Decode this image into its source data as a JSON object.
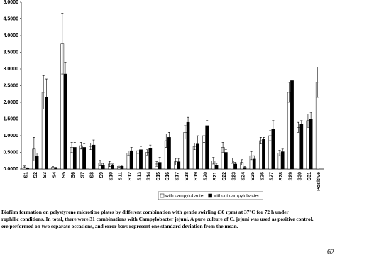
{
  "chart_data": {
    "type": "bar",
    "categories": [
      "S1",
      "S2",
      "S3",
      "S4",
      "S5",
      "S6",
      "S7",
      "S8",
      "S9",
      "S10",
      "S11",
      "S12",
      "S13",
      "S14",
      "S15",
      "S16",
      "S17",
      "S18",
      "S19",
      "S20",
      "S21",
      "S22",
      "S23",
      "S24",
      "S25",
      "S26",
      "S27",
      "S28",
      "S29",
      "S30",
      "S31",
      "Positive"
    ],
    "series": [
      {
        "name": "with campylobacter",
        "color": "#ffffff",
        "values": [
          0.06,
          0.6,
          2.3,
          0.05,
          3.75,
          0.65,
          0.7,
          0.68,
          0.18,
          0.15,
          0.08,
          0.48,
          0.55,
          0.5,
          0.15,
          0.85,
          0.22,
          1.1,
          0.68,
          1.0,
          0.25,
          0.65,
          0.25,
          0.2,
          0.4,
          0.85,
          1.0,
          0.48,
          2.3,
          1.25,
          1.45,
          2.6
        ],
        "errors": [
          0.03,
          0.35,
          0.5,
          0.02,
          0.9,
          0.15,
          0.1,
          0.1,
          0.08,
          0.08,
          0.03,
          0.06,
          0.08,
          0.08,
          0.07,
          0.2,
          0.1,
          0.2,
          0.1,
          0.2,
          0.1,
          0.15,
          0.08,
          0.08,
          0.12,
          0.1,
          0.15,
          0.08,
          0.3,
          0.15,
          0.2,
          0.45
        ]
      },
      {
        "name": "without campylobacter",
        "color": "#000000",
        "values": [
          0.02,
          0.38,
          2.15,
          0.03,
          2.85,
          0.65,
          0.65,
          0.72,
          0.12,
          0.1,
          0.08,
          0.55,
          0.58,
          0.62,
          0.2,
          0.95,
          0.22,
          1.4,
          0.75,
          1.3,
          0.12,
          0.5,
          0.15,
          0.05,
          0.3,
          0.9,
          1.2,
          0.52,
          2.65,
          1.35,
          1.5,
          null
        ],
        "errors": [
          0.02,
          0.1,
          0.55,
          0.02,
          0.35,
          0.15,
          0.1,
          0.15,
          0.05,
          0.05,
          0.03,
          0.1,
          0.1,
          0.1,
          0.15,
          0.15,
          0.1,
          0.15,
          0.25,
          0.15,
          0.05,
          0.08,
          0.05,
          0.03,
          0.1,
          0.05,
          0.25,
          0.08,
          0.4,
          0.1,
          0.2,
          null
        ]
      }
    ],
    "ylim": [
      0,
      5
    ],
    "yticks": [
      {
        "value": 0,
        "label": "0.0000"
      },
      {
        "value": 0.5,
        "label": "0.5000"
      },
      {
        "value": 1,
        "label": "1.0000"
      },
      {
        "value": 1.5,
        "label": "1.5000"
      },
      {
        "value": 2,
        "label": "2.0000"
      },
      {
        "value": 2.5,
        "label": "2.5000"
      },
      {
        "value": 3,
        "label": "3.0000"
      },
      {
        "value": 3.5,
        "label": "3.5000"
      },
      {
        "value": 4,
        "label": "4.0000"
      },
      {
        "value": 4.5,
        "label": "4.5000"
      },
      {
        "value": 5,
        "label": "5.0000"
      }
    ]
  },
  "caption": [
    "Biofilm formation on polystyrene microtitre plates by different combination with gentle swirling (30 rpm) at 37°C for 72 h under",
    "rophilic conditions. In total, there were 31 combinations with Campylobacter jejuni. A pure culture of C. jejuni was used as positive control.",
    "ere performed on two separate occasions, and error bars represent one standard deviation from the mean."
  ],
  "page_number": "62"
}
